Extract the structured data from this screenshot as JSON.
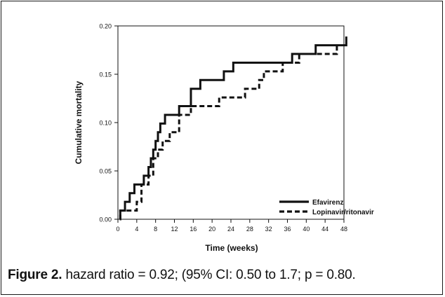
{
  "chart_data": {
    "type": "line",
    "step": true,
    "xlabel": "Time (weeks)",
    "ylabel": "Cumulative mortality",
    "xlim": [
      0,
      48
    ],
    "ylim": [
      0,
      0.2
    ],
    "x_ticks": [
      0,
      4,
      8,
      12,
      16,
      20,
      24,
      28,
      32,
      36,
      40,
      44,
      48
    ],
    "y_ticks": [
      0.0,
      0.05,
      0.1,
      0.15,
      0.2
    ],
    "y_tick_labels": [
      "0.00",
      "0.05",
      "0.10",
      "0.15",
      "0.20"
    ],
    "grid": false,
    "legend_position": "bottom-right",
    "series": [
      {
        "name": "Efavirenz",
        "style": "solid",
        "x": [
          0.5,
          1.5,
          2.5,
          3.5,
          5.5,
          6.5,
          7.0,
          7.5,
          8.0,
          8.5,
          9.0,
          10.0,
          13.0,
          14.0,
          15.5,
          17.5,
          22.5,
          24.5,
          26.0,
          28.0,
          29.5,
          32.5,
          36.0,
          37.0,
          40.5,
          42.0,
          46.0,
          48.5
        ],
        "y": [
          0.009,
          0.018,
          0.027,
          0.036,
          0.045,
          0.054,
          0.063,
          0.072,
          0.081,
          0.09,
          0.099,
          0.108,
          0.117,
          0.117,
          0.135,
          0.144,
          0.153,
          0.162,
          0.162,
          0.162,
          0.162,
          0.162,
          0.162,
          0.171,
          0.171,
          0.18,
          0.18,
          0.189
        ]
      },
      {
        "name": "Lopinavir/ritonavir",
        "style": "dashed",
        "x": [
          0.5,
          1.5,
          4.0,
          5.0,
          6.5,
          7.5,
          8.5,
          9.5,
          11.0,
          13.0,
          15.5,
          17.5,
          21.5,
          22.5,
          27.0,
          29.5,
          30.0,
          31.0,
          35.0,
          36.5,
          38.5,
          42.5,
          44.0,
          46.5
        ],
        "y": [
          0.009,
          0.009,
          0.018,
          0.036,
          0.045,
          0.063,
          0.072,
          0.081,
          0.09,
          0.108,
          0.117,
          0.117,
          0.126,
          0.126,
          0.135,
          0.135,
          0.144,
          0.153,
          0.162,
          0.162,
          0.171,
          0.171,
          0.171,
          0.18
        ]
      }
    ]
  },
  "caption": {
    "label": "Figure 2.",
    "text": " hazard ratio = 0.92; (95% CI: 0.50 to 1.7; p = 0.80."
  },
  "colors": {
    "line": "#111111",
    "frame": "#1a1a1a"
  }
}
